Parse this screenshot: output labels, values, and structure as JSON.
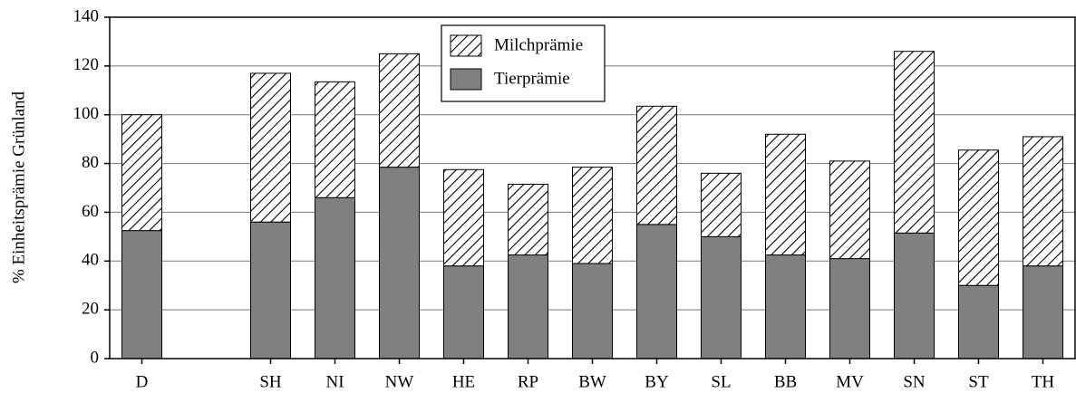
{
  "chart_data": {
    "type": "stacked_bar",
    "y_label": "% Einheitsprämie Grünland",
    "categories": [
      "D",
      null,
      "SH",
      "NI",
      "NW",
      "HE",
      "RP",
      "BW",
      "BY",
      "SL",
      "BB",
      "MV",
      "SN",
      "ST",
      "TH"
    ],
    "series": [
      {
        "name": "Tierprämie",
        "color": "#808080",
        "pattern": "solid",
        "values": [
          52.5,
          null,
          56,
          66,
          78.5,
          38,
          42.5,
          39,
          55,
          50,
          42.5,
          41,
          51.5,
          30,
          38
        ]
      },
      {
        "name": "Milchprämie",
        "color": "#000000",
        "pattern": "hatch",
        "values": [
          47.5,
          null,
          61,
          47.5,
          46.5,
          39.5,
          29,
          39.5,
          48.5,
          26,
          49.5,
          40,
          74.5,
          55.5,
          53
        ]
      }
    ],
    "ylim": [
      0,
      140
    ],
    "yticks": [
      0,
      20,
      40,
      60,
      80,
      100,
      120,
      140
    ],
    "grid": true,
    "legend": "top-center"
  }
}
